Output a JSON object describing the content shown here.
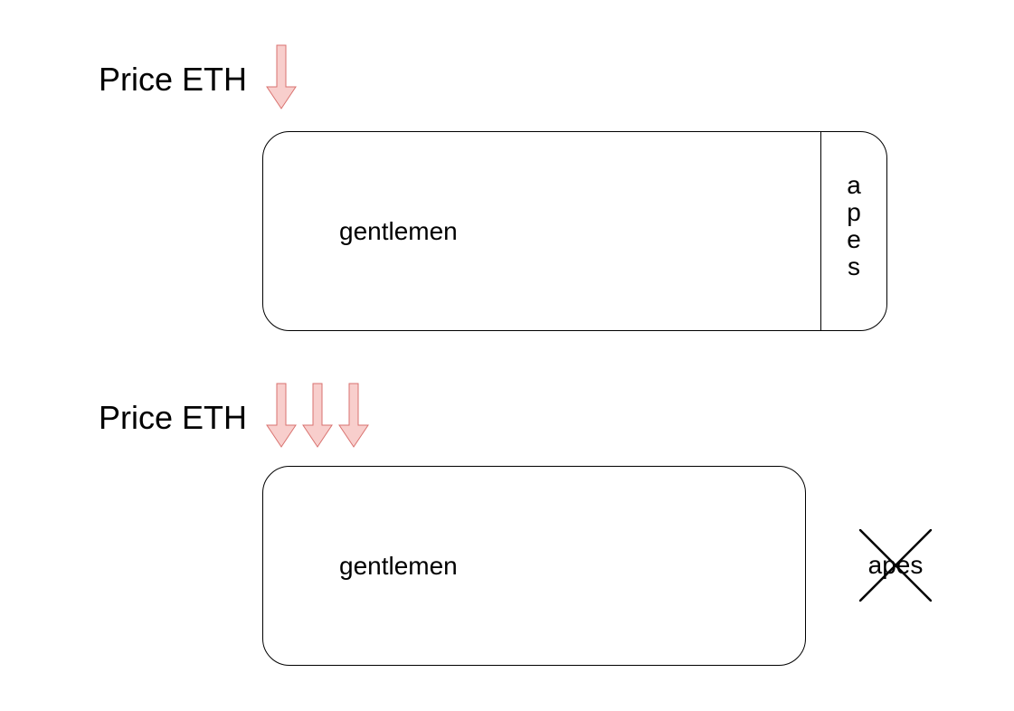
{
  "scenario_top": {
    "heading": "Price ETH",
    "arrow_count": 1,
    "main_label": "gentlemen",
    "side_label": "apes"
  },
  "scenario_bottom": {
    "heading": "Price ETH",
    "arrow_count": 3,
    "main_label": "gentlemen",
    "removed_label": "apes"
  },
  "colors": {
    "arrow_fill": "#f8cecc",
    "arrow_stroke": "#d9726f",
    "line": "#000000"
  }
}
